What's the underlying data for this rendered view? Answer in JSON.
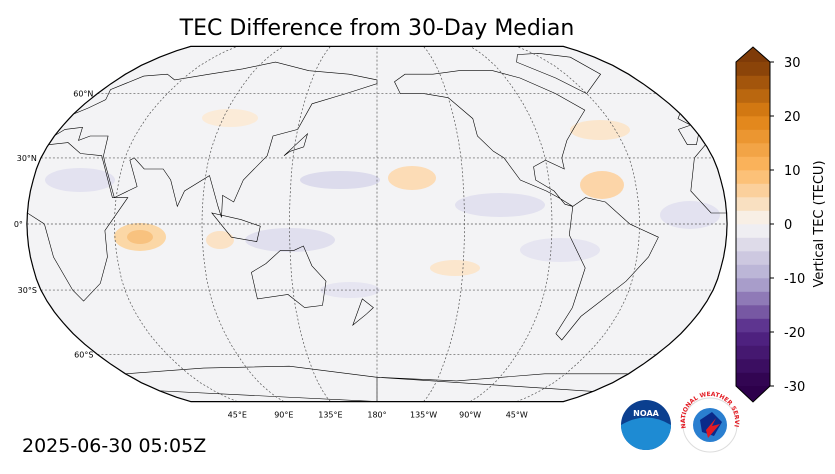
{
  "title": "TEC Difference from 30-Day Median",
  "timestamp": "2025-06-30 05:05Z",
  "map": {
    "lat_ticks": [
      {
        "value": 60,
        "label": "60°N"
      },
      {
        "value": 30,
        "label": "30°N"
      },
      {
        "value": 0,
        "label": "0°"
      },
      {
        "value": -30,
        "label": "30°S"
      },
      {
        "value": -60,
        "label": "60°S"
      }
    ],
    "lon_ticks": [
      {
        "value": 45,
        "label": "45°E"
      },
      {
        "value": 90,
        "label": "90°E"
      },
      {
        "value": 135,
        "label": "135°E"
      },
      {
        "value": 180,
        "label": "180°"
      },
      {
        "value": -135,
        "label": "135°W"
      },
      {
        "value": -90,
        "label": "90°W"
      },
      {
        "value": -45,
        "label": "45°W"
      }
    ]
  },
  "colorbar": {
    "label": "Vertical TEC (TECU)",
    "lim": [
      -30,
      30
    ],
    "ticks": [
      -30,
      -20,
      -10,
      0,
      10,
      20,
      30
    ]
  },
  "logos": {
    "noaa": "NOAA",
    "nws": "NATIONAL WEATHER SERVICE"
  }
}
